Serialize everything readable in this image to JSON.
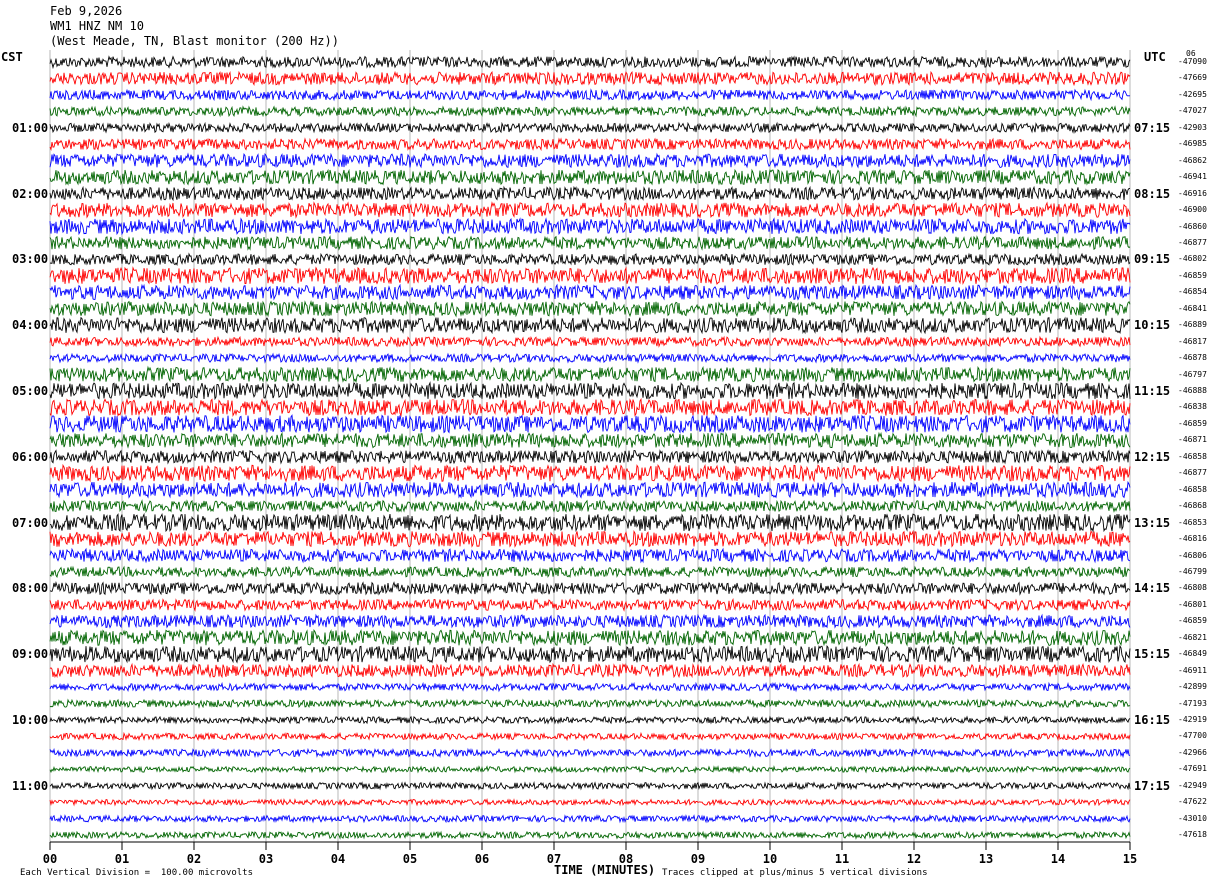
{
  "header": {
    "date": "Feb 9,2026",
    "station": "WM1 HNZ NM 10",
    "location": "(West Meade, TN, Blast monitor (200 Hz))"
  },
  "left_timezone": "CST",
  "right_timezone": "UTC",
  "footer": {
    "vertical_division": "Each Vertical Division =  100.00 microvolts",
    "xlabel": "TIME (MINUTES)",
    "clip_note": "Traces clipped at plus/minus 5 vertical divisions"
  },
  "colors": {
    "trace_cycle": [
      "#000000",
      "#ff0000",
      "#0000ff",
      "#006400"
    ],
    "gridline": "#888888"
  },
  "chart_data": {
    "type": "helicorder",
    "title": "WM1 HNZ NM 10",
    "xlabel": "TIME (MINUTES)",
    "xlim": [
      0,
      15
    ],
    "x_ticks": [
      "00",
      "01",
      "02",
      "03",
      "04",
      "05",
      "06",
      "07",
      "08",
      "09",
      "10",
      "11",
      "12",
      "13",
      "14",
      "15"
    ],
    "minutes_per_line": 15,
    "line_count": 48,
    "left_time_labels": [
      "01:00",
      "02:00",
      "03:00",
      "04:00",
      "05:00",
      "06:00",
      "07:00",
      "08:00",
      "09:00",
      "10:00",
      "11:00"
    ],
    "right_time_labels": [
      "07:15",
      "08:15",
      "09:15",
      "10:15",
      "11:15",
      "12:15",
      "13:15",
      "14:15",
      "15:15",
      "16:15",
      "17:15"
    ],
    "right_first_label": "06",
    "line_offsets": [
      "-47090",
      "-47669",
      "-42695",
      "-47027",
      "-42903",
      "-46985",
      "-46862",
      "-46941",
      "-46916",
      "-46900",
      "-46860",
      "-46877",
      "-46802",
      "-46859",
      "-46854",
      "-46841",
      "-46889",
      "-46817",
      "-46878",
      "-46797",
      "-46888",
      "-46838",
      "-46859",
      "-46871",
      "-46858",
      "-46877",
      "-46858",
      "-46868",
      "-46853",
      "-46816",
      "-46806",
      "-46799",
      "-46808",
      "-46801",
      "-46859",
      "-46821",
      "-46849",
      "-46911",
      "-42899",
      "-47193",
      "-42919",
      "-47700",
      "-42966",
      "-47691",
      "-42949",
      "-47622",
      "-43010",
      "-47618"
    ],
    "trace_amplitude": [
      0.6,
      0.7,
      0.55,
      0.5,
      0.5,
      0.6,
      0.75,
      0.8,
      0.7,
      0.8,
      0.85,
      0.7,
      0.6,
      0.9,
      0.8,
      0.8,
      0.85,
      0.5,
      0.45,
      0.8,
      0.9,
      0.9,
      0.95,
      0.8,
      0.7,
      0.9,
      0.85,
      0.6,
      0.95,
      0.85,
      0.7,
      0.55,
      0.65,
      0.6,
      0.7,
      0.85,
      0.9,
      0.7,
      0.4,
      0.4,
      0.35,
      0.35,
      0.4,
      0.3,
      0.35,
      0.3,
      0.35,
      0.35
    ],
    "grid": true
  }
}
